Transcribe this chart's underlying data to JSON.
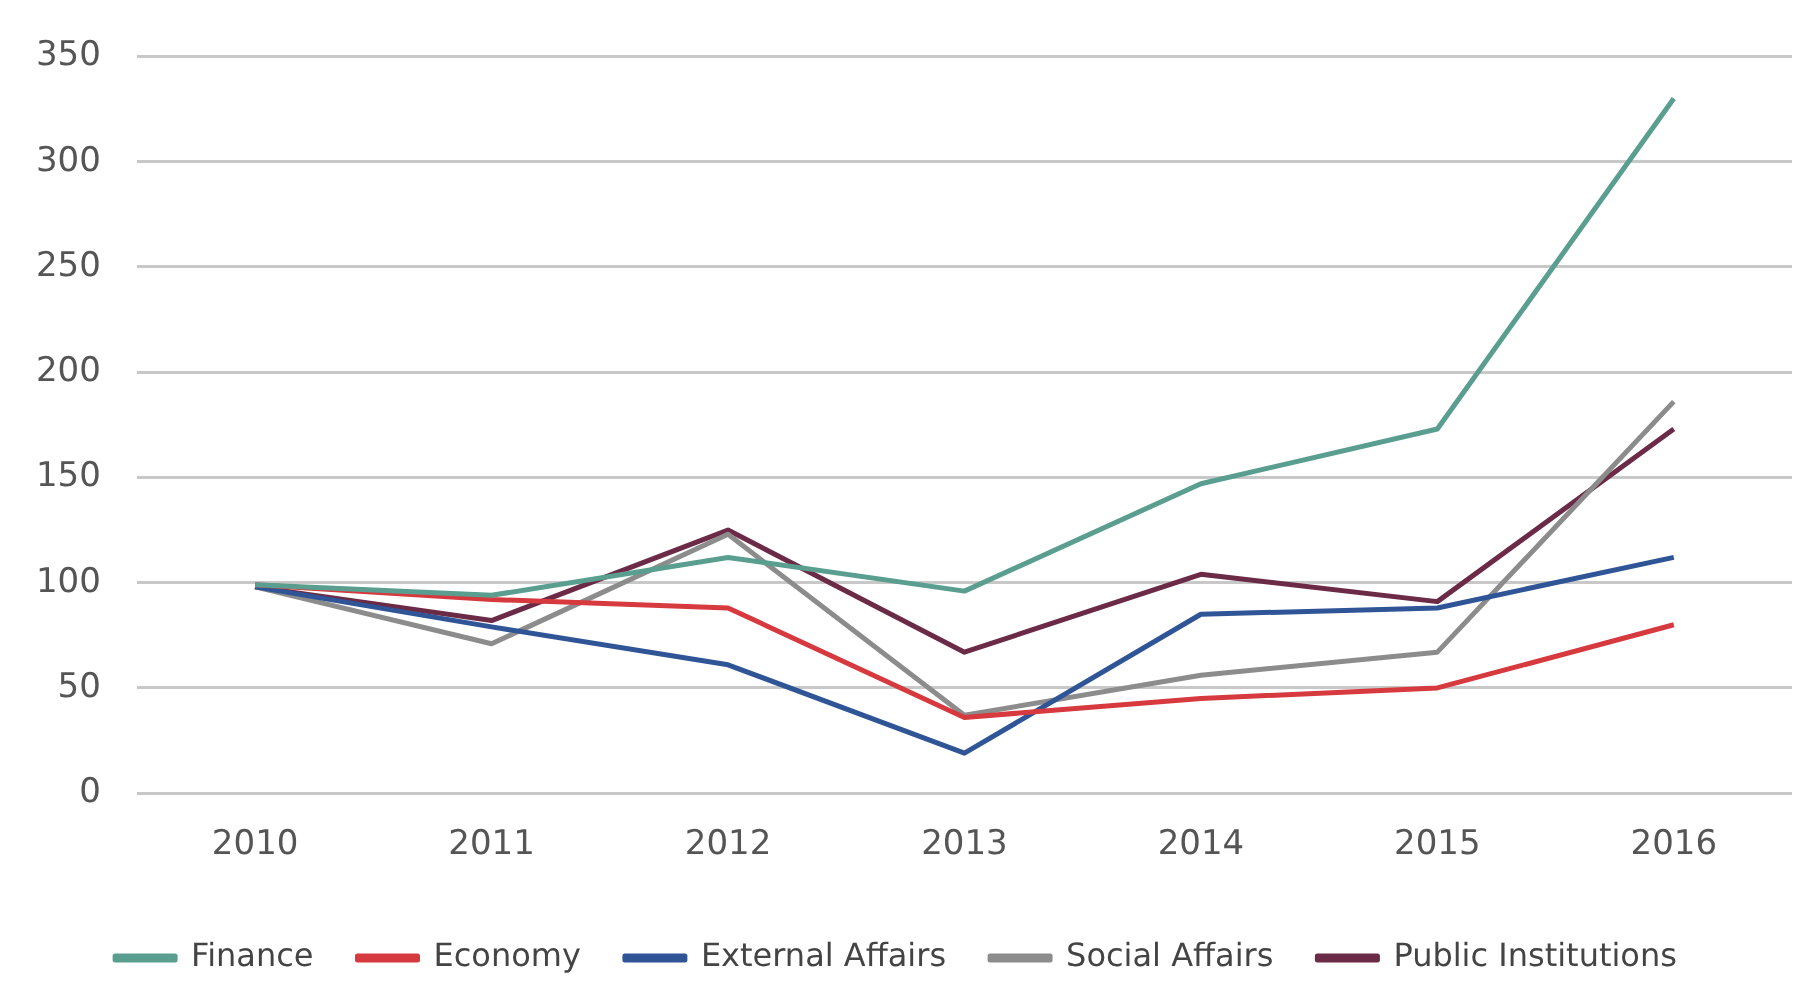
{
  "chart_data": {
    "type": "line",
    "categories": [
      "2010",
      "2011",
      "2012",
      "2013",
      "2014",
      "2015",
      "2016"
    ],
    "series": [
      {
        "name": "Finance",
        "color": "#5a9e8f",
        "values": [
          99,
          94,
          112,
          96,
          147,
          173,
          330
        ]
      },
      {
        "name": "Economy",
        "color": "#d63a3f",
        "values": [
          99,
          92,
          88,
          36,
          45,
          50,
          80
        ]
      },
      {
        "name": "External Affairs",
        "color": "#2f5597",
        "values": [
          98,
          79,
          61,
          19,
          85,
          88,
          112
        ]
      },
      {
        "name": "Social Affairs",
        "color": "#8c8c8c",
        "values": [
          98,
          71,
          123,
          37,
          56,
          67,
          186
        ]
      },
      {
        "name": "Public Institutions",
        "color": "#6b2a45",
        "values": [
          98,
          82,
          125,
          67,
          104,
          91,
          173
        ]
      }
    ],
    "ylim": [
      0,
      350
    ],
    "yticks": [
      0,
      50,
      100,
      150,
      200,
      250,
      300,
      350
    ],
    "grid": "y",
    "legend": "bottom",
    "marker": "none",
    "line_style": "solid"
  }
}
